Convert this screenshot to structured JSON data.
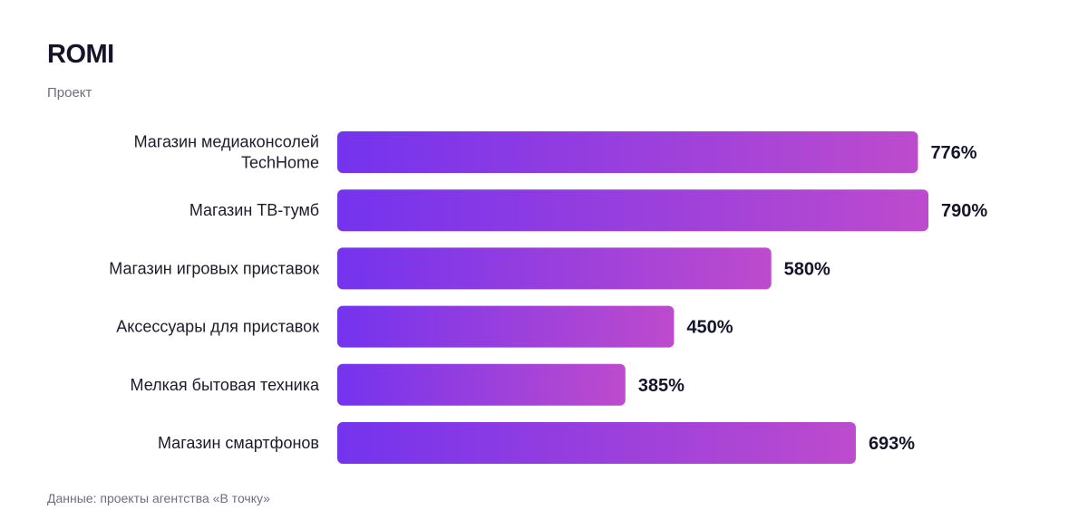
{
  "header": {
    "title": "ROMI",
    "subtitle": "Проект"
  },
  "footer": {
    "source": "Данные: проекты агентства «В точку»"
  },
  "colors": {
    "bar_gradient_start": "#7433ee",
    "bar_gradient_end": "#bd4bcd"
  },
  "chart_data": {
    "type": "bar",
    "orientation": "horizontal",
    "title": "ROMI",
    "subtitle": "Проект",
    "categories": [
      [
        "Магазин медиаконсолей",
        "TechHome"
      ],
      [
        "Магазин ТВ-тумб"
      ],
      [
        "Магазин игровых приставок"
      ],
      [
        "Аксессуары для приставок"
      ],
      [
        "Мелкая бытовая техника"
      ],
      [
        "Магазин смартфонов"
      ]
    ],
    "values": [
      776,
      790,
      580,
      450,
      385,
      693
    ],
    "value_labels": [
      "776%",
      "790%",
      "580%",
      "450%",
      "385%",
      "693%"
    ],
    "unit": "%",
    "grid": false,
    "legend": "none"
  }
}
